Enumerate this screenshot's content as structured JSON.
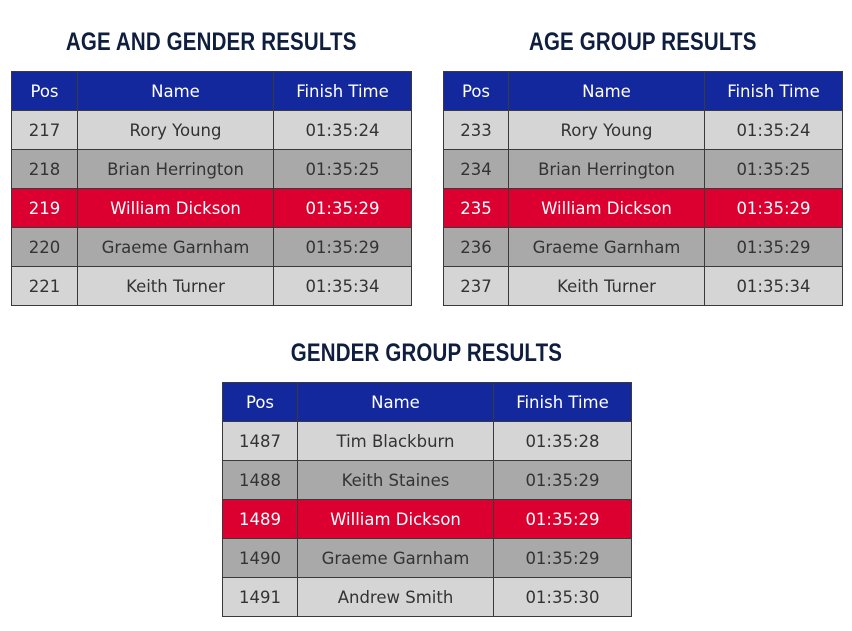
{
  "sections": [
    {
      "title": "AGE AND GENDER RESULTS",
      "headers": {
        "pos": "Pos",
        "name": "Name",
        "time": "Finish Time"
      },
      "rows": [
        {
          "pos": "217",
          "name": "Rory Young",
          "time": "01:35:24",
          "style": "light"
        },
        {
          "pos": "218",
          "name": "Brian Herrington",
          "time": "01:35:25",
          "style": "dark"
        },
        {
          "pos": "219",
          "name": "William Dickson",
          "time": "01:35:29",
          "style": "highlight"
        },
        {
          "pos": "220",
          "name": "Graeme Garnham",
          "time": "01:35:29",
          "style": "dark"
        },
        {
          "pos": "221",
          "name": "Keith Turner",
          "time": "01:35:34",
          "style": "light"
        }
      ]
    },
    {
      "title": "AGE GROUP RESULTS",
      "headers": {
        "pos": "Pos",
        "name": "Name",
        "time": "Finish Time"
      },
      "rows": [
        {
          "pos": "233",
          "name": "Rory Young",
          "time": "01:35:24",
          "style": "light"
        },
        {
          "pos": "234",
          "name": "Brian Herrington",
          "time": "01:35:25",
          "style": "dark"
        },
        {
          "pos": "235",
          "name": "William Dickson",
          "time": "01:35:29",
          "style": "highlight"
        },
        {
          "pos": "236",
          "name": "Graeme Garnham",
          "time": "01:35:29",
          "style": "dark"
        },
        {
          "pos": "237",
          "name": "Keith Turner",
          "time": "01:35:34",
          "style": "light"
        }
      ]
    },
    {
      "title": "GENDER GROUP RESULTS",
      "headers": {
        "pos": "Pos",
        "name": "Name",
        "time": "Finish Time"
      },
      "rows": [
        {
          "pos": "1487",
          "name": "Tim Blackburn",
          "time": "01:35:28",
          "style": "light"
        },
        {
          "pos": "1488",
          "name": "Keith Staines",
          "time": "01:35:29",
          "style": "dark"
        },
        {
          "pos": "1489",
          "name": "William Dickson",
          "time": "01:35:29",
          "style": "highlight"
        },
        {
          "pos": "1490",
          "name": "Graeme Garnham",
          "time": "01:35:29",
          "style": "dark"
        },
        {
          "pos": "1491",
          "name": "Andrew Smith",
          "time": "01:35:30",
          "style": "light"
        }
      ]
    }
  ],
  "colors": {
    "header_bg": "#14289e",
    "row_light": "#d5d5d5",
    "row_dark": "#a9a9a9",
    "highlight": "#dc0030",
    "title_text": "#0f1e3f"
  }
}
